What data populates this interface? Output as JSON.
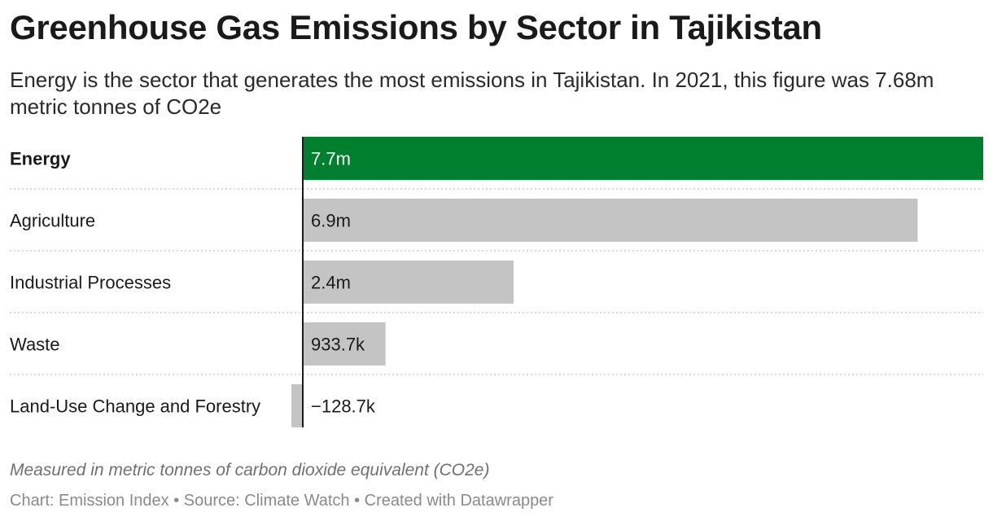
{
  "title": "Greenhouse Gas Emissions by Sector in Tajikistan",
  "subtitle": "Energy is the sector that generates the most emissions in Tajikistan. In 2021, this figure was 7.68m metric tonnes of CO2e",
  "note": "Measured in metric tonnes of carbon dioxide equivalent (CO2e)",
  "footer": "Chart: Emission Index • Source: Climate Watch • Created with Datawrapper",
  "colors": {
    "highlight": "#00802f",
    "default": "#c4c4c4",
    "axis": "#1a1a1a",
    "separator": "#cfcfcf"
  },
  "chart_data": {
    "type": "bar",
    "orientation": "horizontal",
    "categories": [
      "Energy",
      "Agriculture",
      "Industrial Processes",
      "Waste",
      "Land-Use Change and Forestry"
    ],
    "values": [
      7680000,
      6940000,
      2380000,
      933700,
      -128700
    ],
    "value_labels": [
      "7.7m",
      "6.9m",
      "2.4m",
      "933.7k",
      "−128.7k"
    ],
    "highlighted": "Energy",
    "xlim": [
      -128700,
      7680000
    ],
    "grid": false
  }
}
